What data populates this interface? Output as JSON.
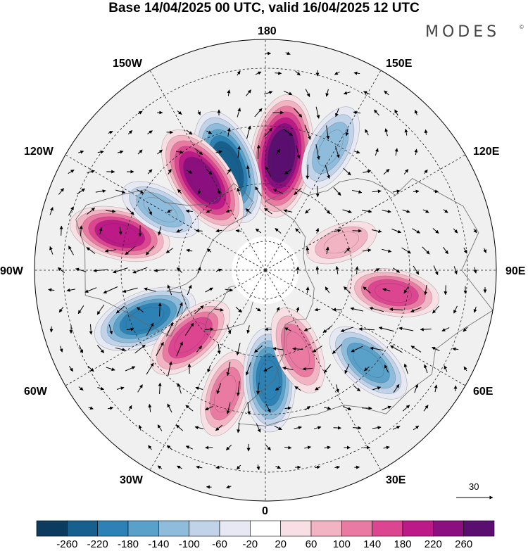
{
  "header": {
    "title": "Base 14/04/2025 00 UTC, valid 16/04/2025 12 UTC",
    "brand": "MODES",
    "brand_mark": "©"
  },
  "map": {
    "projection": "north-polar-stereographic",
    "longitude_labels": {
      "top": "180",
      "upper_left_150": "150W",
      "upper_right_150": "150E",
      "left_120": "120W",
      "right_120": "120E",
      "left": "90W",
      "right": "90E",
      "lower_left_60": "60W",
      "lower_right_60": "60E",
      "lower_left_30": "30W",
      "lower_right_30": "30E",
      "bottom": "0"
    },
    "reference_vector_label": "30",
    "anomaly_centers": [
      {
        "lon": 172,
        "lat": 50,
        "value": 270,
        "sign": "positive"
      },
      {
        "lon": -160,
        "lat": 52,
        "value": -240,
        "sign": "negative"
      },
      {
        "lon": -145,
        "lat": 52,
        "value": 240,
        "sign": "positive"
      },
      {
        "lon": 152,
        "lat": 42,
        "value": -130,
        "sign": "negative"
      },
      {
        "lon": -104,
        "lat": 38,
        "value": 180,
        "sign": "positive"
      },
      {
        "lon": -120,
        "lat": 48,
        "value": -110,
        "sign": "negative"
      },
      {
        "lon": -68,
        "lat": 45,
        "value": -200,
        "sign": "negative"
      },
      {
        "lon": -48,
        "lat": 55,
        "value": 160,
        "sign": "positive"
      },
      {
        "lon": -18,
        "lat": 45,
        "value": 120,
        "sign": "positive"
      },
      {
        "lon": 2,
        "lat": 52,
        "value": -190,
        "sign": "negative"
      },
      {
        "lon": 22,
        "lat": 60,
        "value": 130,
        "sign": "positive"
      },
      {
        "lon": 48,
        "lat": 42,
        "value": -150,
        "sign": "negative"
      },
      {
        "lon": 80,
        "lat": 45,
        "value": 140,
        "sign": "positive"
      },
      {
        "lon": 110,
        "lat": 62,
        "value": 60,
        "sign": "positive"
      }
    ]
  },
  "colorbar": {
    "levels": [
      -260,
      -220,
      -180,
      -140,
      -100,
      -60,
      -20,
      20,
      60,
      100,
      140,
      180,
      220,
      260
    ],
    "tick_labels": [
      "-260",
      "-220",
      "-180",
      "-140",
      "-100",
      "-60",
      "-20",
      "20",
      "60",
      "100",
      "140",
      "180",
      "220",
      "260"
    ],
    "colors": [
      "#0d3b5e",
      "#175f8c",
      "#2d82b5",
      "#5aa1ca",
      "#8fbcdb",
      "#c0d3e8",
      "#e6e8f3",
      "#ffffff",
      "#f7dfe3",
      "#f2b4c2",
      "#e97aa2",
      "#dc4590",
      "#bc1a86",
      "#8b0f7e",
      "#5a0f70"
    ]
  }
}
